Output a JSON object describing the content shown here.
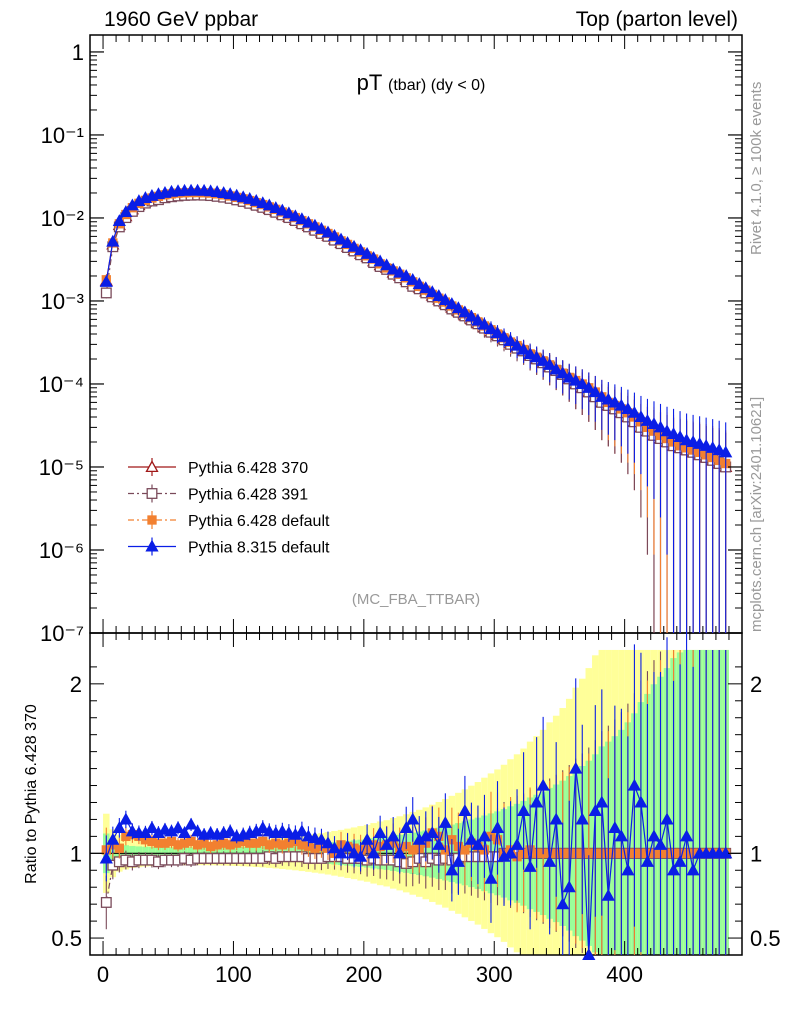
{
  "header": {
    "left": "1960 GeV ppbar",
    "right": "Top (parton level)"
  },
  "side_labels": {
    "rivet": "Rivet 4.1.0, ≥ 100k events",
    "mcplots": "mcplots.cern.ch [arXiv:2401.10621]"
  },
  "chart_data": [
    {
      "type": "line",
      "panel": "main",
      "title": "pT",
      "title_sub": "(tbar) (dy < 0)",
      "analysis_tag": "(MC_FBA_TTBAR)",
      "xlabel": "",
      "ylabel": "",
      "yscale": "log",
      "xlim": [
        -10,
        490
      ],
      "ylim": [
        1e-07,
        1.6
      ],
      "x_ticks": [
        0,
        100,
        200,
        300,
        400
      ],
      "y_tick_labels": [
        "1",
        "10⁻¹",
        "10⁻²",
        "10⁻³",
        "10⁻⁴",
        "10⁻⁵",
        "10⁻⁶",
        "10⁻⁷"
      ],
      "y_tick_values": [
        1,
        0.1,
        0.01,
        0.001,
        0.0001,
        1e-05,
        1e-06,
        1e-07
      ],
      "legend_position": "bottom-left",
      "x": [
        2.5,
        7.5,
        12.5,
        17.5,
        22.5,
        27.5,
        32.5,
        37.5,
        42.5,
        47.5,
        52.5,
        57.5,
        62.5,
        67.5,
        72.5,
        77.5,
        82.5,
        87.5,
        92.5,
        97.5,
        102.5,
        107.5,
        112.5,
        117.5,
        122.5,
        127.5,
        132.5,
        137.5,
        142.5,
        147.5,
        152.5,
        157.5,
        162.5,
        167.5,
        172.5,
        177.5,
        182.5,
        187.5,
        192.5,
        197.5,
        202.5,
        207.5,
        212.5,
        217.5,
        222.5,
        227.5,
        232.5,
        237.5,
        242.5,
        247.5,
        252.5,
        257.5,
        262.5,
        267.5,
        272.5,
        277.5,
        282.5,
        287.5,
        292.5,
        297.5,
        302.5,
        307.5,
        312.5,
        317.5,
        322.5,
        327.5,
        332.5,
        337.5,
        342.5,
        347.5,
        352.5,
        357.5,
        362.5,
        367.5,
        372.5,
        377.5,
        382.5,
        387.5,
        392.5,
        397.5,
        402.5,
        407.5,
        412.5,
        417.5,
        422.5,
        427.5,
        432.5,
        437.5,
        442.5,
        447.5,
        452.5,
        457.5,
        462.5,
        467.5,
        472.5,
        477.5
      ],
      "series": [
        {
          "name": "Pythia 6.428 370",
          "color": "#a01818",
          "marker": "triangle-open",
          "dash": "solid",
          "values": [
            0.00175,
            0.0048,
            0.0082,
            0.0105,
            0.0127,
            0.0143,
            0.0157,
            0.0167,
            0.0175,
            0.0182,
            0.0188,
            0.0191,
            0.0193,
            0.0195,
            0.0195,
            0.0194,
            0.0192,
            0.0188,
            0.0183,
            0.0177,
            0.017,
            0.0163,
            0.0155,
            0.0146,
            0.0138,
            0.0129,
            0.012,
            0.0111,
            0.0103,
            0.0095,
            0.0087,
            0.008,
            0.0073,
            0.0067,
            0.0061,
            0.0055,
            0.005,
            0.0045,
            0.0041,
            0.0037,
            0.0034,
            0.003,
            0.0027,
            0.0025,
            0.0022,
            0.002,
            0.0018,
            0.0016,
            0.00145,
            0.0013,
            0.00116,
            0.00104,
            0.00093,
            0.00083,
            0.00075,
            0.00067,
            0.0006,
            0.00054,
            0.00048,
            0.00043,
            0.00039,
            0.00035,
            0.00031,
            0.00028,
            0.00025,
            0.00022,
            0.0002,
            0.00018,
            0.00016,
            0.000145,
            0.00013,
            0.000115,
            0.0001,
            9e-05,
            8e-05,
            7e-05,
            6e-05,
            5.5e-05,
            5e-05,
            4.5e-05,
            4e-05,
            3.5e-05,
            3e-05,
            2.7e-05,
            2.4e-05,
            2.2e-05,
            2e-05,
            1.8e-05,
            1.7e-05,
            1.6e-05,
            1.5e-05,
            1.4e-05,
            1.3e-05,
            1.2e-05,
            1.1e-05,
            1e-05
          ],
          "ratio": [
            1.0,
            1.0,
            1.0,
            1.0,
            1.0,
            1.0,
            1.0,
            1.0,
            1.0,
            1.0,
            1.0,
            1.0,
            1.0,
            1.0,
            1.0,
            1.0,
            1.0,
            1.0,
            1.0,
            1.0,
            1.0,
            1.0,
            1.0,
            1.0,
            1.0,
            1.0,
            1.0,
            1.0,
            1.0,
            1.0,
            1.0,
            1.0,
            1.0,
            1.0,
            1.0,
            1.0,
            1.0,
            1.0,
            1.0,
            1.0,
            1.0,
            1.0,
            1.0,
            1.0,
            1.0,
            1.0,
            1.0,
            1.0,
            1.0,
            1.0,
            1.0,
            1.0,
            1.0,
            1.0,
            1.0,
            1.0,
            1.0,
            1.0,
            1.0,
            1.0,
            1.0,
            1.0,
            1.0,
            1.0,
            1.0,
            1.0,
            1.0,
            1.0,
            1.0,
            1.0,
            1.0,
            1.0,
            1.0,
            1.0,
            1.0,
            1.0,
            1.0,
            1.0,
            1.0,
            1.0,
            1.0,
            1.0,
            1.0,
            1.0,
            1.0,
            1.0,
            1.0,
            1.0,
            1.0,
            1.0,
            1.0,
            1.0,
            1.0,
            1.0,
            1.0,
            1.0
          ]
        },
        {
          "name": "Pythia 6.428 391",
          "color": "#7a4a5a",
          "marker": "square-open",
          "dash": "dashdot",
          "values": [
            0.00125,
            0.0045,
            0.0078,
            0.0101,
            0.012,
            0.0137,
            0.0151,
            0.016,
            0.0166,
            0.0175,
            0.018,
            0.0184,
            0.0187,
            0.0188,
            0.0189,
            0.0188,
            0.0186,
            0.0182,
            0.0178,
            0.0172,
            0.0165,
            0.0158,
            0.015,
            0.0142,
            0.0134,
            0.0126,
            0.0117,
            0.0109,
            0.0101,
            0.0093,
            0.0085,
            0.0078,
            0.0071,
            0.0065,
            0.006,
            0.0054,
            0.0049,
            0.0044,
            0.004,
            0.0036,
            0.0033,
            0.0029,
            0.0026,
            0.0024,
            0.0021,
            0.0019,
            0.0017,
            0.0015,
            0.0014,
            0.00125,
            0.00112,
            0.001,
            0.0009,
            0.0008,
            0.00073,
            0.00066,
            0.00059,
            0.00053,
            0.00047,
            0.00042,
            0.00038,
            0.00034,
            0.0003,
            0.00027,
            0.00025,
            0.00022,
            0.0002,
            0.00018,
            0.00016,
            0.000145,
            0.00013,
            0.000115,
            0.0001,
            9e-05,
            8e-05,
            7e-05,
            6e-05,
            5.5e-05,
            5e-05,
            4.5e-05,
            4e-05,
            3.5e-05,
            3e-05,
            2.7e-05,
            2.4e-05,
            2.2e-05,
            2e-05,
            1.8e-05,
            1.7e-05,
            1.6e-05,
            1.5e-05,
            1.4e-05,
            1.3e-05,
            1.2e-05,
            1.1e-05,
            1e-05
          ],
          "ratio": [
            0.71,
            0.93,
            0.95,
            0.96,
            0.95,
            0.96,
            0.96,
            0.96,
            0.95,
            0.96,
            0.96,
            0.96,
            0.97,
            0.96,
            0.97,
            0.97,
            0.97,
            0.97,
            0.97,
            0.97,
            0.97,
            0.97,
            0.97,
            0.97,
            0.97,
            0.98,
            0.97,
            0.98,
            0.98,
            0.98,
            0.98,
            0.97,
            0.97,
            0.97,
            0.98,
            0.98,
            0.98,
            0.97,
            0.97,
            0.97,
            0.96,
            0.97,
            0.96,
            0.96,
            0.96,
            0.95,
            0.94,
            0.95,
            0.97,
            0.95,
            0.97,
            0.96,
            0.97,
            0.96,
            0.97,
            0.98,
            0.98,
            0.98,
            0.98,
            0.98,
            0.98,
            1.0,
            1.0,
            1.0,
            1.0,
            1.0,
            1.0,
            1.0,
            1.0,
            1.0,
            1.0,
            1.0,
            1.0,
            1.0,
            1.0,
            1.0,
            1.0,
            1.0,
            1.0,
            1.0,
            1.0,
            1.0,
            1.0,
            1.0,
            1.0,
            1.0,
            1.0,
            1.0,
            1.0,
            1.0,
            1.0,
            1.0,
            1.0,
            1.0,
            1.0,
            1.0
          ]
        },
        {
          "name": "Pythia 6.428 default",
          "color": "#f28030",
          "marker": "square-filled",
          "dash": "dashdot",
          "values": [
            0.0018,
            0.005,
            0.0085,
            0.011,
            0.0133,
            0.015,
            0.0163,
            0.0174,
            0.0182,
            0.019,
            0.0195,
            0.0199,
            0.0201,
            0.0202,
            0.0202,
            0.0201,
            0.0199,
            0.0195,
            0.019,
            0.0184,
            0.0177,
            0.017,
            0.0162,
            0.0153,
            0.0145,
            0.0136,
            0.0127,
            0.0118,
            0.0109,
            0.0101,
            0.0093,
            0.0085,
            0.0078,
            0.0071,
            0.0065,
            0.0059,
            0.0053,
            0.0048,
            0.0043,
            0.0039,
            0.0035,
            0.0032,
            0.0028,
            0.0025,
            0.0023,
            0.0021,
            0.0019,
            0.0017,
            0.0015,
            0.00135,
            0.0012,
            0.00108,
            0.00097,
            0.00087,
            0.00078,
            0.0007,
            0.00063,
            0.00056,
            0.0005,
            0.00045,
            0.0004,
            0.00036,
            0.00032,
            0.00029,
            0.00026,
            0.00023,
            0.00021,
            0.00019,
            0.00017,
            0.00015,
            0.000135,
            0.00012,
            0.00011,
            0.0001,
            9e-05,
            8e-05,
            7e-05,
            6e-05,
            5.5e-05,
            5e-05,
            4.5e-05,
            4e-05,
            3.5e-05,
            3e-05,
            2.7e-05,
            2.4e-05,
            2.2e-05,
            2e-05,
            1.8e-05,
            1.7e-05,
            1.6e-05,
            1.5e-05,
            1.4e-05,
            1.3e-05,
            1.2e-05,
            1.1e-05
          ],
          "ratio": [
            1.02,
            1.05,
            1.03,
            1.1,
            1.11,
            1.1,
            1.08,
            1.07,
            1.06,
            1.06,
            1.07,
            1.05,
            1.06,
            1.07,
            1.05,
            1.06,
            1.04,
            1.05,
            1.06,
            1.05,
            1.06,
            1.07,
            1.06,
            1.06,
            1.07,
            1.05,
            1.06,
            1.05,
            1.06,
            1.07,
            1.05,
            1.04,
            1.03,
            1.04,
            1.03,
            1.0,
            1.05,
            1.04,
            1.03,
            1.02,
            1.03,
            1.05,
            1.04,
            1.05,
            1.06,
            1.03,
            1.04,
            1.02,
            1.03,
            1.06,
            1.12,
            1.1,
            1.02,
            1.08,
            1.04,
            1.02,
            1.06,
            1.04,
            1.02,
            1.1,
            1.08,
            1.0,
            1.02,
            0.98,
            1.0,
            1.02,
            1.0,
            1.0,
            1.0,
            1.0,
            1.0,
            1.0,
            1.0,
            1.0,
            1.0,
            1.0,
            1.0,
            1.0,
            1.0,
            1.0,
            1.0,
            1.0,
            1.0,
            1.0,
            1.0,
            1.0,
            1.0,
            1.0,
            1.0,
            1.0,
            1.0,
            1.0,
            1.0,
            1.0,
            1.0,
            1.0
          ]
        },
        {
          "name": "Pythia 8.315 default",
          "color": "#0a1ee6",
          "marker": "triangle-filled",
          "dash": "solid",
          "values": [
            0.0017,
            0.0052,
            0.0092,
            0.0118,
            0.0142,
            0.016,
            0.0174,
            0.0185,
            0.0194,
            0.0201,
            0.0207,
            0.0211,
            0.0213,
            0.0214,
            0.0214,
            0.0213,
            0.021,
            0.0206,
            0.02,
            0.0194,
            0.0186,
            0.0178,
            0.017,
            0.0161,
            0.0151,
            0.0142,
            0.0132,
            0.0123,
            0.0114,
            0.0105,
            0.0097,
            0.0088,
            0.0081,
            0.0074,
            0.0067,
            0.0061,
            0.0055,
            0.005,
            0.0045,
            0.0041,
            0.0037,
            0.0033,
            0.003,
            0.0027,
            0.0024,
            0.0022,
            0.002,
            0.0018,
            0.0016,
            0.00143,
            0.00128,
            0.00115,
            0.00103,
            0.00092,
            0.00082,
            0.00073,
            0.00065,
            0.00058,
            0.00052,
            0.00046,
            0.00041,
            0.00037,
            0.00033,
            0.00029,
            0.00026,
            0.00023,
            0.00021,
            0.00019,
            0.00017,
            0.00015,
            0.000135,
            0.00012,
            0.00011,
            0.0001,
            9e-05,
            8e-05,
            7e-05,
            6.5e-05,
            6e-05,
            5.5e-05,
            5e-05,
            4.5e-05,
            4e-05,
            3.6e-05,
            3.3e-05,
            3e-05,
            2.7e-05,
            2.5e-05,
            2.3e-05,
            2.1e-05,
            2e-05,
            1.9e-05,
            1.8e-05,
            1.7e-05,
            1.6e-05,
            1.5e-05
          ],
          "ratio": [
            0.97,
            1.08,
            1.15,
            1.2,
            1.13,
            1.12,
            1.12,
            1.15,
            1.12,
            1.14,
            1.13,
            1.15,
            1.12,
            1.17,
            1.13,
            1.11,
            1.12,
            1.11,
            1.12,
            1.13,
            1.1,
            1.11,
            1.12,
            1.13,
            1.15,
            1.13,
            1.12,
            1.13,
            1.12,
            1.11,
            1.13,
            1.1,
            1.09,
            1.08,
            1.06,
            1.03,
            1.0,
            1.04,
            1.0,
            0.98,
            1.08,
            1.0,
            1.12,
            1.05,
            1.1,
            1.0,
            1.15,
            1.2,
            1.08,
            1.1,
            1.12,
            1.05,
            1.18,
            0.9,
            0.95,
            1.25,
            1.08,
            1.05,
            1.1,
            0.85,
            1.15,
            0.98,
            1.0,
            1.05,
            1.25,
            0.92,
            1.3,
            1.4,
            0.95,
            1.2,
            0.7,
            0.8,
            1.5,
            1.2,
            0.4,
            1.25,
            1.3,
            0.75,
            1.15,
            1.1,
            0.9,
            1.4,
            1.3,
            0.95,
            1.1,
            1.05,
            1.2,
            0.9,
            0.95,
            1.1,
            0.9,
            1.0,
            1.0,
            1.0,
            1.0,
            1.0
          ]
        }
      ]
    },
    {
      "type": "line",
      "panel": "ratio",
      "ylabel": "Ratio to Pythia 6.428 370",
      "xlabel": "",
      "xlim": [
        -10,
        490
      ],
      "ylim": [
        0.4,
        2.3
      ],
      "y_ticks": [
        0.5,
        1,
        2
      ],
      "y_tick_labels": [
        "0.5",
        "1",
        "2"
      ],
      "x_ticks": [
        0,
        100,
        200,
        300,
        400
      ],
      "x_tick_labels": [
        "0",
        "100",
        "200",
        "300",
        "400"
      ],
      "band_colors": {
        "inner": "#99ff99",
        "outer": "#ffff99"
      }
    }
  ]
}
